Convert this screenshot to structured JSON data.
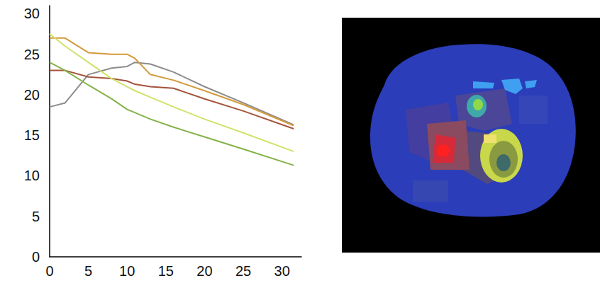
{
  "chart_data": {
    "type": "line",
    "x": [
      0,
      2,
      5,
      8,
      10,
      11,
      13,
      16,
      20,
      25,
      31.5
    ],
    "series": [
      {
        "color": "#8c8c8c",
        "values": [
          18.5,
          19,
          22.5,
          23.3,
          23.5,
          24,
          23.8,
          22.8,
          21,
          19,
          16.3
        ]
      },
      {
        "color": "#d49a3c",
        "values": [
          27,
          27,
          25.2,
          25,
          25,
          24.5,
          22.5,
          21.8,
          20.5,
          18.8,
          16.2
        ]
      },
      {
        "color": "#a5533c",
        "values": [
          23,
          23,
          22.2,
          22,
          21.7,
          21.3,
          21,
          20.8,
          19.5,
          18,
          15.8
        ]
      },
      {
        "color": "#cfe36a",
        "values": [
          27.5,
          26,
          24,
          22,
          21,
          20.5,
          19.7,
          18.5,
          17,
          15.3,
          13
        ]
      },
      {
        "color": "#84b247",
        "values": [
          24,
          23,
          21.2,
          19.5,
          18.2,
          17.8,
          17,
          16,
          14.8,
          13.3,
          11.3
        ]
      }
    ],
    "xlim": [
      0,
      32.5
    ],
    "xticks": [
      0,
      5,
      10,
      15,
      20,
      25,
      30
    ],
    "ylim": [
      0,
      31
    ],
    "yticks": [
      0,
      5,
      10,
      15,
      20,
      25,
      30
    ],
    "grid": false
  }
}
